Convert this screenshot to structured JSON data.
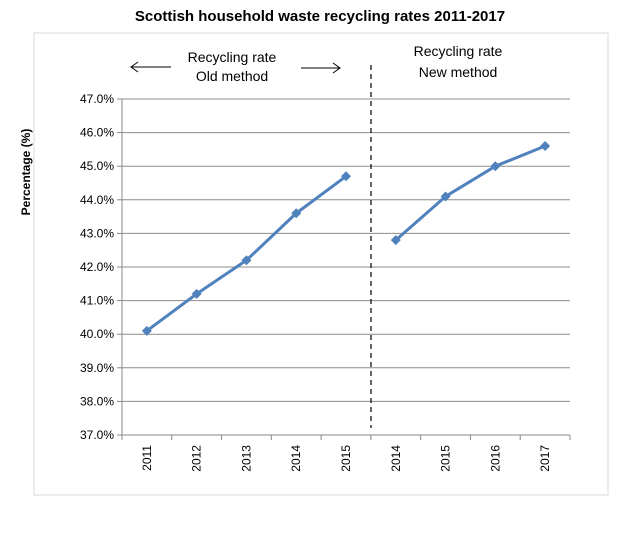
{
  "chart_data": {
    "type": "line",
    "title": "Scottish household waste recycling rates 2011-2017",
    "ylabel": "Percentage (%)",
    "xlabel": "",
    "ylim": [
      37.0,
      47.0
    ],
    "y_ticks": [
      "37.0%",
      "38.0%",
      "39.0%",
      "40.0%",
      "41.0%",
      "42.0%",
      "43.0%",
      "44.0%",
      "45.0%",
      "46.0%",
      "47.0%"
    ],
    "categories": [
      "2011",
      "2012",
      "2013",
      "2014",
      "2015",
      "2014",
      "2015",
      "2016",
      "2017"
    ],
    "series": [
      {
        "values": [
          40.1,
          41.2,
          42.2,
          43.6,
          44.7,
          null,
          null,
          null,
          null
        ],
        "color": "#4F81BD"
      },
      {
        "values": [
          null,
          null,
          null,
          null,
          null,
          42.8,
          44.1,
          45.0,
          45.6
        ],
        "color": "#4F81BD"
      }
    ],
    "grid": true,
    "legend": "none",
    "annotations": {
      "old_label_1": "Recycling rate",
      "old_label_2": "Old method",
      "new_label_1": "Recycling rate",
      "new_label_2": "New method"
    }
  }
}
